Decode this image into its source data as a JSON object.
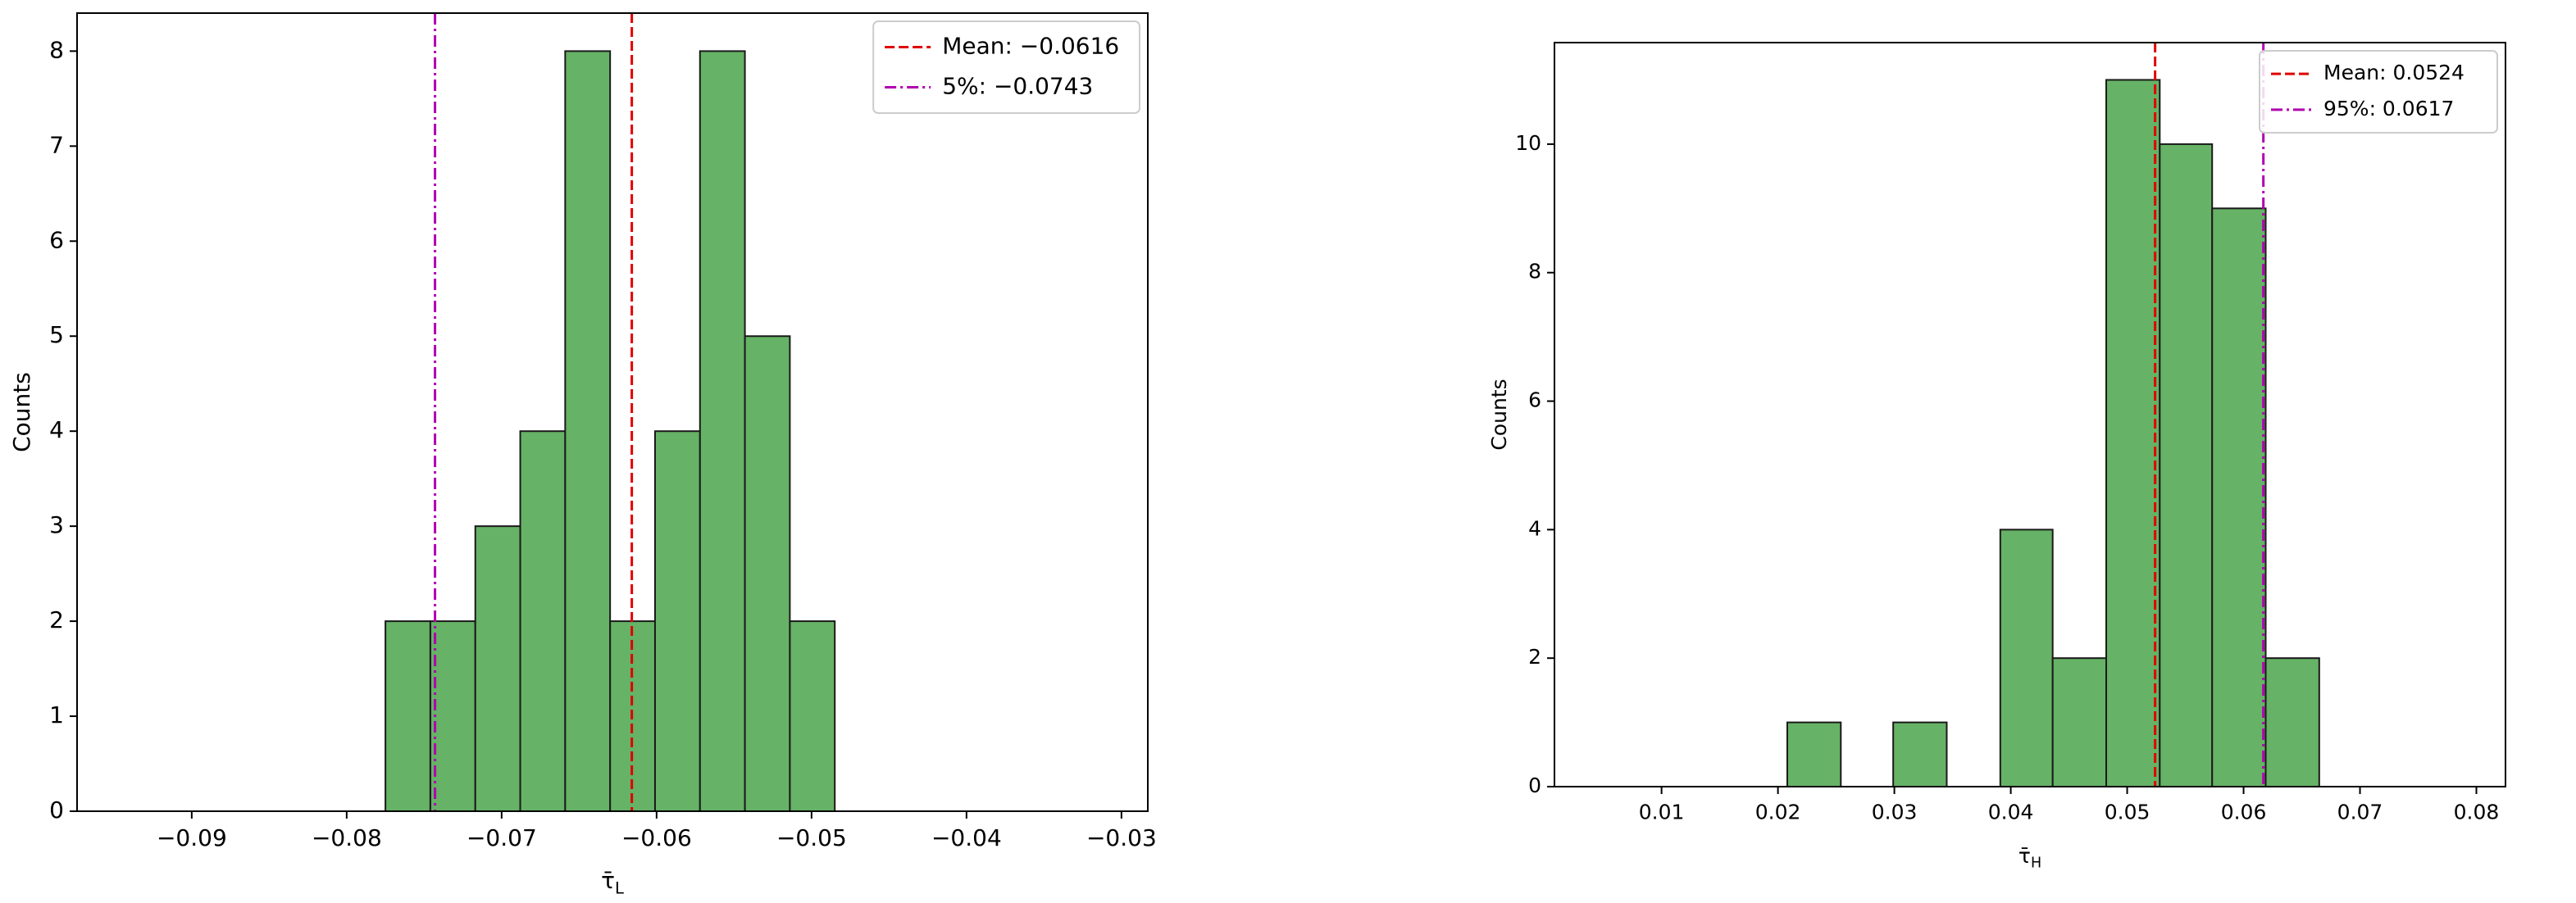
{
  "chart_data": [
    {
      "type": "histogram",
      "bins": [
        -0.0775,
        -0.0746,
        -0.0717,
        -0.0688,
        -0.0659,
        -0.063,
        -0.0601,
        -0.0572,
        -0.0543,
        -0.0514,
        -0.0485
      ],
      "values": [
        2,
        2,
        3,
        4,
        8,
        2,
        4,
        8,
        5,
        2
      ],
      "color": "#66b266",
      "edgecolor": "#1a1a1a",
      "x_label": "τ̄",
      "x_label_subscript": "L",
      "y_label": "Counts",
      "xlim": [
        -0.0974,
        -0.0283
      ],
      "xticks": [
        {
          "value": -0.09,
          "label": "−0.09"
        },
        {
          "value": -0.08,
          "label": "−0.08"
        },
        {
          "value": -0.07,
          "label": "−0.07"
        },
        {
          "value": -0.06,
          "label": "−0.06"
        },
        {
          "value": -0.05,
          "label": "−0.05"
        },
        {
          "value": -0.04,
          "label": "−0.04"
        },
        {
          "value": -0.03,
          "label": "−0.03"
        }
      ],
      "ylim": [
        0,
        8.4
      ],
      "yticks": [
        0,
        1,
        2,
        3,
        4,
        5,
        6,
        7,
        8
      ],
      "legend": "upper right",
      "vlines": [
        {
          "name": "Mean: −0.0616",
          "value": -0.0616,
          "color": "#e00000",
          "style": "dashed"
        },
        {
          "name": "5%: −0.0743",
          "value": -0.0743,
          "color": "#b000b0",
          "style": "dashdot"
        }
      ]
    },
    {
      "type": "histogram",
      "bins": [
        0.0208,
        0.0254,
        0.0299,
        0.0345,
        0.0391,
        0.0436,
        0.0482,
        0.0528,
        0.0573,
        0.0619,
        0.0665
      ],
      "values": [
        1,
        0,
        1,
        0,
        4,
        2,
        11,
        10,
        9,
        2
      ],
      "color": "#66b266",
      "edgecolor": "#1a1a1a",
      "x_label": "τ̄",
      "x_label_subscript": "H",
      "y_label": "Counts",
      "xlim": [
        0.0008,
        0.0825
      ],
      "xticks": [
        0.01,
        0.02,
        0.03,
        0.04,
        0.05,
        0.06,
        0.07,
        0.08
      ],
      "ylim": [
        0,
        11.58
      ],
      "yticks": [
        0,
        2,
        4,
        6,
        8,
        10
      ],
      "legend": "upper right",
      "vlines": [
        {
          "name": "Mean: 0.0524",
          "value": 0.0524,
          "color": "#e00000",
          "style": "dashed"
        },
        {
          "name": "95%: 0.0617",
          "value": 0.0617,
          "color": "#b000b0",
          "style": "dashdot"
        }
      ]
    }
  ]
}
